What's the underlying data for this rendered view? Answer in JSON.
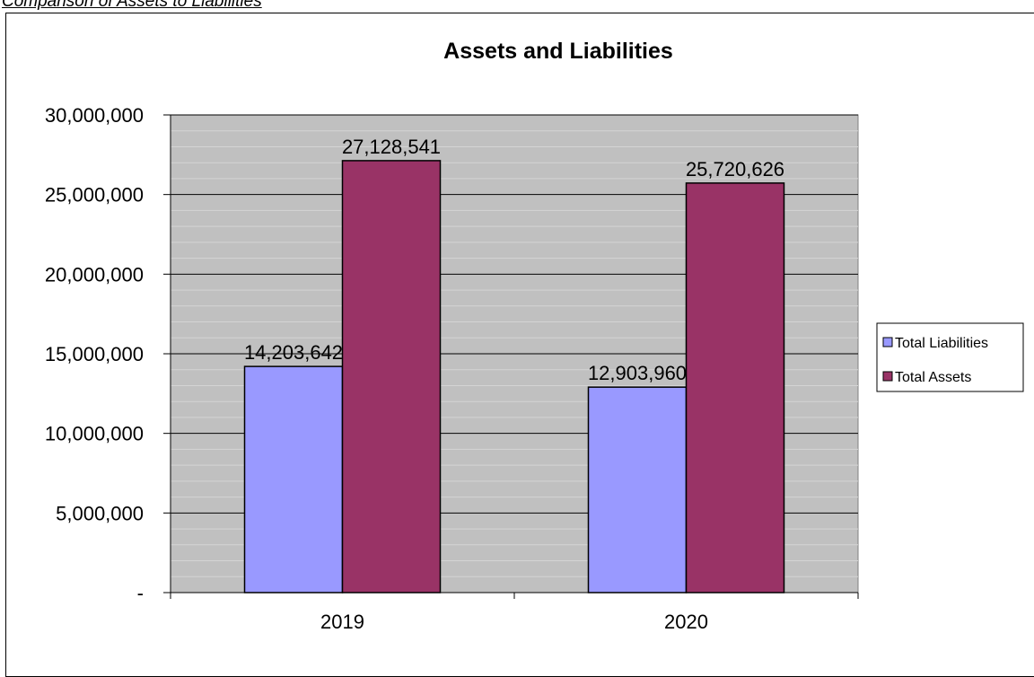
{
  "heading": "Comparison of Assets to Liabilities",
  "chart_data": {
    "type": "bar",
    "title": "Assets and Liabilities",
    "categories": [
      "2019",
      "2020"
    ],
    "series": [
      {
        "name": "Total Liabilities",
        "values": [
          14203642,
          12903960
        ],
        "labels": [
          "14,203,642",
          "12,903,960"
        ],
        "color": "#9999ff"
      },
      {
        "name": "Total Assets",
        "values": [
          27128541,
          25720626
        ],
        "labels": [
          "27,128,541",
          "25,720,626"
        ],
        "color": "#993366"
      }
    ],
    "ylim": [
      0,
      30000000
    ],
    "yticks": [
      0,
      5000000,
      10000000,
      15000000,
      20000000,
      25000000,
      30000000
    ],
    "ytick_labels": [
      "-",
      "5,000,000",
      "10,000,000",
      "15,000,000",
      "20,000,000",
      "25,000,000",
      "30,000,000"
    ],
    "grid": true,
    "plot_background": "#c0c0c0",
    "legend_position": "right"
  }
}
